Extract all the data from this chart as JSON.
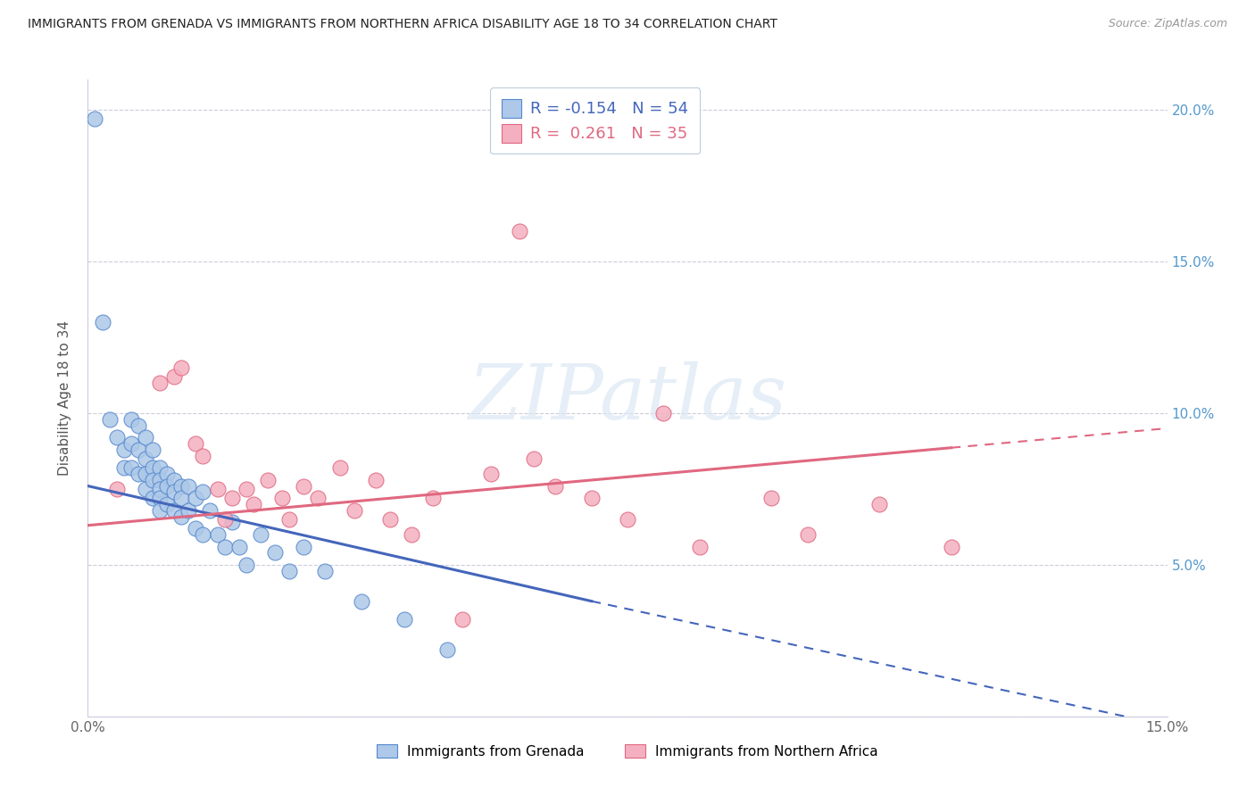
{
  "title": "IMMIGRANTS FROM GRENADA VS IMMIGRANTS FROM NORTHERN AFRICA DISABILITY AGE 18 TO 34 CORRELATION CHART",
  "source": "Source: ZipAtlas.com",
  "label_grenada": "Immigrants from Grenada",
  "label_n_africa": "Immigrants from Northern Africa",
  "ylabel": "Disability Age 18 to 34",
  "xlim": [
    0.0,
    0.15
  ],
  "ylim": [
    0.0,
    0.21
  ],
  "R_grenada": -0.154,
  "N_grenada": 54,
  "R_n_africa": 0.261,
  "N_n_africa": 35,
  "color_grenada_face": "#adc8e8",
  "color_grenada_edge": "#5588cc",
  "color_n_africa_face": "#f4b0c0",
  "color_n_africa_edge": "#e06880",
  "color_line_grenada": "#4466bb",
  "color_line_n_africa": "#e06880",
  "grenada_x": [
    0.001,
    0.002,
    0.003,
    0.004,
    0.005,
    0.005,
    0.006,
    0.006,
    0.006,
    0.007,
    0.007,
    0.007,
    0.008,
    0.008,
    0.008,
    0.008,
    0.009,
    0.009,
    0.009,
    0.009,
    0.01,
    0.01,
    0.01,
    0.01,
    0.01,
    0.011,
    0.011,
    0.011,
    0.012,
    0.012,
    0.012,
    0.013,
    0.013,
    0.013,
    0.014,
    0.014,
    0.015,
    0.015,
    0.016,
    0.016,
    0.017,
    0.018,
    0.019,
    0.02,
    0.021,
    0.022,
    0.024,
    0.026,
    0.028,
    0.03,
    0.033,
    0.038,
    0.044,
    0.05
  ],
  "grenada_y": [
    0.197,
    0.13,
    0.098,
    0.092,
    0.088,
    0.082,
    0.098,
    0.09,
    0.082,
    0.096,
    0.088,
    0.08,
    0.092,
    0.085,
    0.08,
    0.075,
    0.088,
    0.082,
    0.078,
    0.072,
    0.082,
    0.078,
    0.075,
    0.072,
    0.068,
    0.08,
    0.076,
    0.07,
    0.078,
    0.074,
    0.068,
    0.076,
    0.072,
    0.066,
    0.076,
    0.068,
    0.072,
    0.062,
    0.074,
    0.06,
    0.068,
    0.06,
    0.056,
    0.064,
    0.056,
    0.05,
    0.06,
    0.054,
    0.048,
    0.056,
    0.048,
    0.038,
    0.032,
    0.022
  ],
  "n_africa_x": [
    0.004,
    0.01,
    0.012,
    0.013,
    0.015,
    0.016,
    0.018,
    0.019,
    0.02,
    0.022,
    0.023,
    0.025,
    0.027,
    0.028,
    0.03,
    0.032,
    0.035,
    0.037,
    0.04,
    0.042,
    0.045,
    0.048,
    0.052,
    0.056,
    0.06,
    0.062,
    0.065,
    0.07,
    0.075,
    0.08,
    0.085,
    0.095,
    0.1,
    0.11,
    0.12
  ],
  "n_africa_y": [
    0.075,
    0.11,
    0.112,
    0.115,
    0.09,
    0.086,
    0.075,
    0.065,
    0.072,
    0.075,
    0.07,
    0.078,
    0.072,
    0.065,
    0.076,
    0.072,
    0.082,
    0.068,
    0.078,
    0.065,
    0.06,
    0.072,
    0.032,
    0.08,
    0.16,
    0.085,
    0.076,
    0.072,
    0.065,
    0.1,
    0.056,
    0.072,
    0.06,
    0.07,
    0.056
  ],
  "trend_grenada_x0": 0.0,
  "trend_grenada_y0": 0.076,
  "trend_grenada_x1": 0.07,
  "trend_grenada_y1": 0.038,
  "trend_grenada_xdash_end": 0.15,
  "trend_grenada_ydash_end": -0.003,
  "trend_nafrica_x0": 0.0,
  "trend_nafrica_y0": 0.063,
  "trend_nafrica_x1": 0.15,
  "trend_nafrica_y1": 0.095
}
